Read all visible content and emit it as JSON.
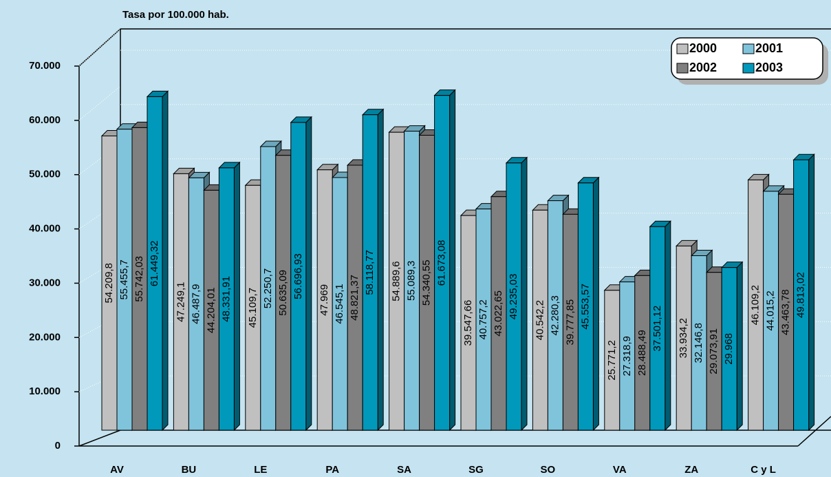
{
  "chart_data": {
    "type": "bar3d",
    "title": "Tasa por 100.000 hab.",
    "categories": [
      "AV",
      "BU",
      "LE",
      "PA",
      "SA",
      "SG",
      "SO",
      "VA",
      "ZA",
      "C y L"
    ],
    "series": [
      {
        "name": "2000",
        "color": "#c0c0c0",
        "values": [
          54209.8,
          47249.1,
          45109.7,
          47969,
          54889.6,
          39547.66,
          40542.2,
          25771.2,
          33934.2,
          46109.2
        ],
        "value_labels": [
          "54.209,8",
          "47.249,1",
          "45.109,7",
          "47.969",
          "54.889,6",
          "39.547,66",
          "40.542,2",
          "25.771,2",
          "33.934,2",
          "46.109,2"
        ]
      },
      {
        "name": "2001",
        "color": "#80c4dc",
        "values": [
          55455.7,
          46487.9,
          52250.7,
          46545.1,
          55089.3,
          40757.2,
          42280.3,
          27318.9,
          32146.8,
          44015.2
        ],
        "value_labels": [
          "55.455,7",
          "46.487,9",
          "52.250,7",
          "46.545,1",
          "55.089,3",
          "40.757,2",
          "42.280,3",
          "27.318,9",
          "32.146,8",
          "44.015,2"
        ]
      },
      {
        "name": "2002",
        "color": "#808080",
        "values": [
          55742.03,
          44204.01,
          50635.09,
          48821.37,
          54340.55,
          43022.65,
          39777.85,
          28488.49,
          29073.91,
          43463.78
        ],
        "value_labels": [
          "55.742,03",
          "44.204,01",
          "50.635,09",
          "48.821,37",
          "54.340,55",
          "43.022,65",
          "39.777,85",
          "28.488,49",
          "29.073,91",
          "43.463,78"
        ]
      },
      {
        "name": "2003",
        "color": "#0099bb",
        "values": [
          61449.32,
          48331.91,
          56696.93,
          58118.77,
          61673.08,
          49235.03,
          45553.57,
          37501.12,
          29968,
          49813.02
        ],
        "value_labels": [
          "61.449,32",
          "48.331,91",
          "56.696,93",
          "58.118,77",
          "61.673,08",
          "49.235,03",
          "45.553,57",
          "37.501,12",
          "29.968",
          "49.813,02"
        ]
      }
    ],
    "ylim": [
      0,
      70000
    ],
    "yticks": [
      0,
      {
        "value": 10000,
        "label": "10.000"
      },
      {
        "value": 20000,
        "label": "20.000"
      },
      {
        "value": 30000,
        "label": "30.000"
      },
      {
        "value": 40000,
        "label": "40.000"
      },
      {
        "value": 50000,
        "label": "50.000"
      },
      {
        "value": 60000,
        "label": "60.000"
      },
      {
        "value": 70000,
        "label": "70.000"
      }
    ],
    "grid": true,
    "legend": "top-right"
  }
}
